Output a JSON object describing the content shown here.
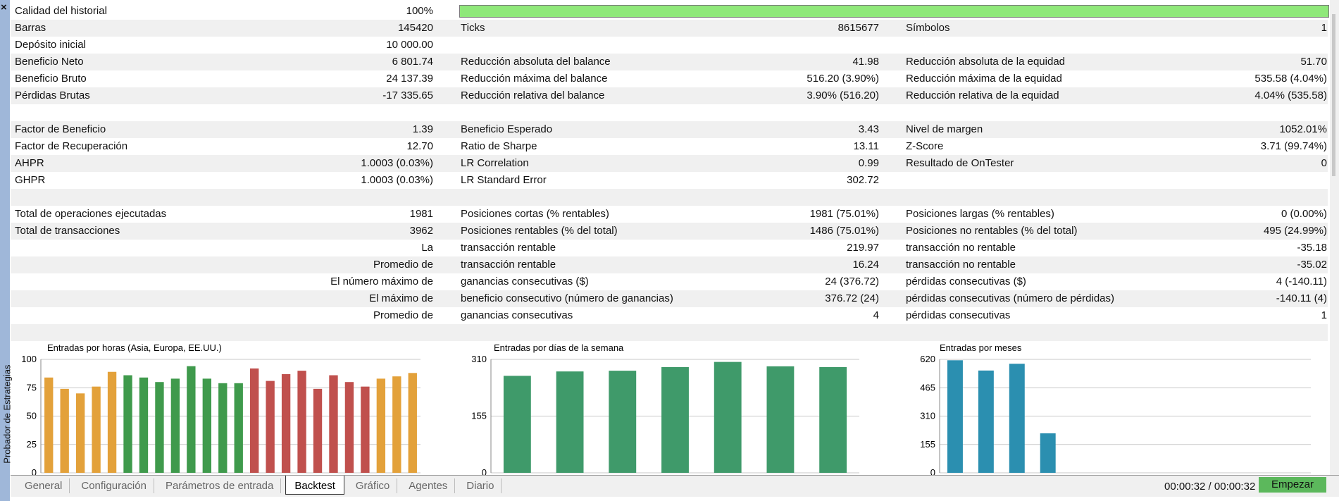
{
  "sidebar_title": "Probador de Estrategias",
  "history_quality": {
    "label": "Calidad del historial",
    "value": 100,
    "value_label": "100%"
  },
  "table": {
    "rows": [
      [
        "Barras",
        "145420",
        "Ticks",
        "8615677",
        "Símbolos",
        "1"
      ],
      [
        "Depósito inicial",
        "10 000.00",
        null,
        null,
        null,
        null
      ],
      [
        "Beneficio Neto",
        "6 801.74",
        "Reducción absoluta del balance",
        "41.98",
        "Reducción absoluta de la equidad",
        "51.70"
      ],
      [
        "Beneficio Bruto",
        "24 137.39",
        "Reducción máxima del balance",
        "516.20 (3.90%)",
        "Reducción máxima de la equidad",
        "535.58 (4.04%)"
      ],
      [
        "Pérdidas Brutas",
        "-17 335.65",
        "Reducción relativa del balance",
        "3.90% (516.20)",
        "Reducción relativa de la equidad",
        "4.04% (535.58)"
      ],
      null,
      [
        "Factor de Beneficio",
        "1.39",
        "Beneficio Esperado",
        "3.43",
        "Nivel de margen",
        "1052.01%"
      ],
      [
        "Factor de Recuperación",
        "12.70",
        "Ratio de Sharpe",
        "13.11",
        "Z-Score",
        "3.71 (99.74%)"
      ],
      [
        "AHPR",
        "1.0003 (0.03%)",
        "LR Correlation",
        "0.99",
        "Resultado de OnTester",
        "0"
      ],
      [
        "GHPR",
        "1.0003 (0.03%)",
        "LR Standard Error",
        "302.72",
        null,
        null
      ],
      null,
      [
        "Total de operaciones ejecutadas",
        "1981",
        "Posiciones cortas (% rentables)",
        "1981 (75.01%)",
        "Posiciones largas (% rentables)",
        "0 (0.00%)"
      ],
      [
        "Total de transacciones",
        "3962",
        "Posiciones rentables (% del total)",
        "1486 (75.01%)",
        "Posiciones no rentables (% del total)",
        "495 (24.99%)"
      ],
      [
        null,
        "La",
        "transacción rentable",
        "219.97",
        "transacción no rentable",
        "-35.18"
      ],
      [
        null,
        "Promedio de",
        "transacción rentable",
        "16.24",
        "transacción no rentable",
        "-35.02"
      ],
      [
        null,
        "El número máximo de",
        "ganancias consecutivas ($)",
        "24 (376.72)",
        "pérdidas consecutivas ($)",
        "4 (-140.11)"
      ],
      [
        null,
        "El máximo de",
        "beneficio consecutivo (número de ganancias)",
        "376.72 (24)",
        "pérdidas consecutivas (número de pérdidas)",
        "-140.11 (4)"
      ],
      [
        null,
        "Promedio de",
        "ganancias consecutivas",
        "4",
        "pérdidas consecutivas",
        "1"
      ],
      null
    ]
  },
  "chart_data": [
    {
      "type": "bar",
      "title": "Entradas por horas (Asia, Europa, EE.UU.)",
      "values": [
        84,
        74,
        70,
        76,
        89,
        86,
        84,
        80,
        83,
        94,
        83,
        79,
        79,
        92,
        81,
        87,
        90,
        74,
        86,
        80,
        76,
        83,
        85,
        88
      ],
      "colors": [
        "#e3a13a",
        "#e3a13a",
        "#e3a13a",
        "#e3a13a",
        "#e3a13a",
        "#3f9a4c",
        "#3f9a4c",
        "#3f9a4c",
        "#3f9a4c",
        "#3f9a4c",
        "#3f9a4c",
        "#3f9a4c",
        "#3f9a4c",
        "#c0504d",
        "#c0504d",
        "#c0504d",
        "#c0504d",
        "#c0504d",
        "#c0504d",
        "#c0504d",
        "#c0504d",
        "#e3a13a",
        "#e3a13a",
        "#e3a13a"
      ],
      "ylim": [
        0,
        100
      ],
      "yticks": [
        0,
        25,
        50,
        75,
        100
      ],
      "grid": true
    },
    {
      "type": "bar",
      "title": "Entradas por días de la semana",
      "values": [
        265,
        277,
        279,
        289,
        303,
        291,
        289
      ],
      "color": "#3f9a6a",
      "ylim": [
        0,
        310
      ],
      "yticks": [
        0,
        155,
        310
      ],
      "grid": true
    },
    {
      "type": "bar",
      "title": "Entradas por meses",
      "values": [
        615,
        559,
        596,
        216,
        0,
        0,
        0,
        0,
        0,
        0,
        0,
        0
      ],
      "color": "#2b8fb0",
      "ylim": [
        0,
        620
      ],
      "yticks": [
        0,
        155,
        310,
        465,
        620
      ],
      "grid": true
    }
  ],
  "tabs": [
    "General",
    "Configuración",
    "Parámetros de entrada",
    "Backtest",
    "Gráfico",
    "Agentes",
    "Diario"
  ],
  "active_tab": 3,
  "timer": "00:00:32 / 00:00:32",
  "start_button": "Empezar"
}
